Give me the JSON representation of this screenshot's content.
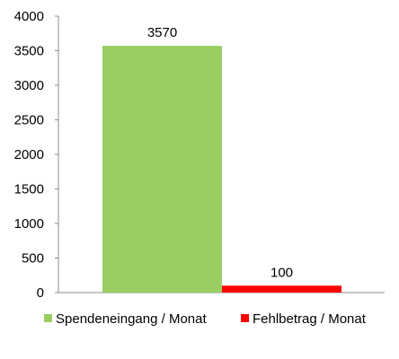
{
  "chart_data": {
    "type": "bar",
    "categories": [
      ""
    ],
    "series": [
      {
        "name": "Spendeneingang / Monat",
        "values": [
          3570
        ],
        "color": "#9ACD62",
        "data_label": "3570"
      },
      {
        "name": "Fehlbetrag / Monat",
        "values": [
          100
        ],
        "color": "#FF0000",
        "data_label": "100"
      }
    ],
    "ylim": [
      0,
      4000
    ],
    "yticks": [
      "0",
      "500",
      "1000",
      "1500",
      "2000",
      "2500",
      "3000",
      "3500",
      "4000"
    ],
    "grid": false,
    "legend_position": "bottom",
    "title": "",
    "xlabel": "",
    "ylabel": ""
  }
}
